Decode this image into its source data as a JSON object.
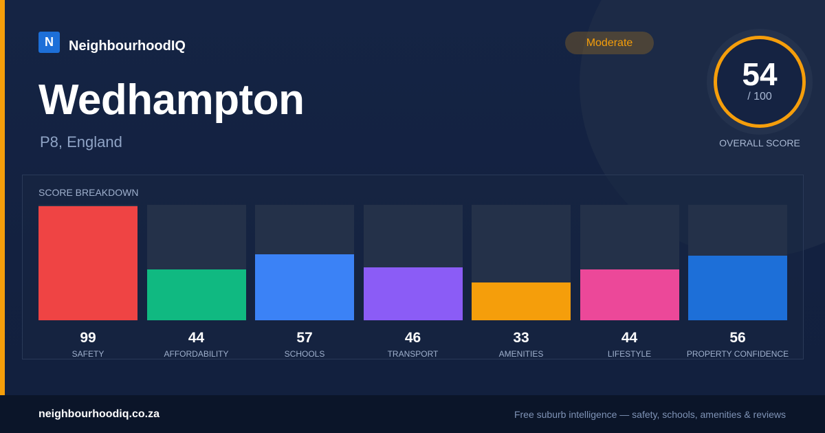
{
  "brand": {
    "logo_letter": "N",
    "name": "NeighbourhoodIQ",
    "logo_color": "#1d6fd8",
    "accent_color": "#f59e0b"
  },
  "location": {
    "name": "Wedhampton",
    "region": "P8, England"
  },
  "rating": {
    "badge": "Moderate",
    "badge_color": "#f59e0b",
    "score": "54",
    "max": "/ 100",
    "label": "OVERALL SCORE",
    "ring_color": "#f59e0b"
  },
  "breakdown": {
    "title": "SCORE BREAKDOWN",
    "metrics": [
      {
        "label": "SAFETY",
        "value": 99,
        "color": "#ef4444"
      },
      {
        "label": "AFFORDABILITY",
        "value": 44,
        "color": "#10b981"
      },
      {
        "label": "SCHOOLS",
        "value": 57,
        "color": "#3b82f6"
      },
      {
        "label": "TRANSPORT",
        "value": 46,
        "color": "#8b5cf6"
      },
      {
        "label": "AMENITIES",
        "value": 33,
        "color": "#f59e0b"
      },
      {
        "label": "LIFESTYLE",
        "value": 44,
        "color": "#ec4899"
      },
      {
        "label": "PROPERTY CONFIDENCE",
        "value": 56,
        "color": "#1d6fd8"
      }
    ]
  },
  "footer": {
    "url": "neighbourhoodiq.co.za",
    "tagline": "Free suburb intelligence — safety, schools, amenities & reviews"
  }
}
